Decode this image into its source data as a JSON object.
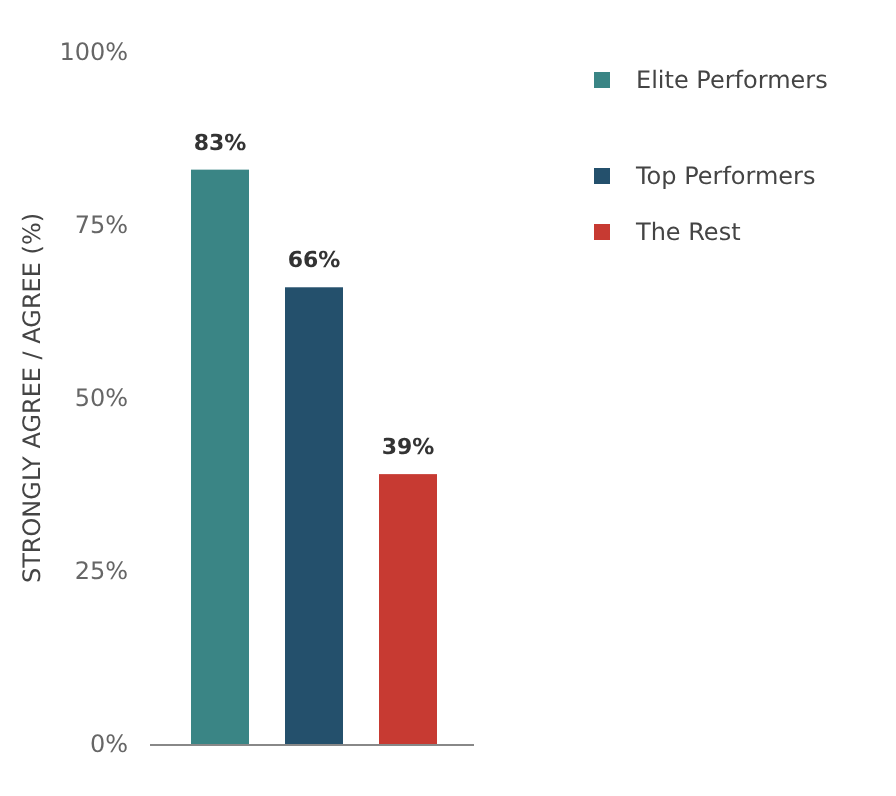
{
  "chart_data": {
    "type": "bar",
    "ylabel": "STRONGLY AGREE / AGREE (%)",
    "categories": [
      null,
      null,
      null
    ],
    "series": [
      {
        "name": "Elite Performers",
        "color": "#3a8585",
        "values": [
          83,
          null,
          null
        ],
        "value_labels": [
          "83%",
          null,
          null
        ]
      },
      {
        "name": "Top Performers",
        "color": "#24506c",
        "values": [
          null,
          66,
          null
        ],
        "value_labels": [
          null,
          "66%",
          null
        ]
      },
      {
        "name": "The Rest",
        "color": "#c73a32",
        "values": [
          null,
          null,
          39
        ],
        "value_labels": [
          null,
          null,
          "39%"
        ]
      }
    ],
    "ylim": [
      0,
      100
    ],
    "yticks": [
      {
        "value": 0,
        "label": "0%"
      },
      {
        "value": 25,
        "label": "25%"
      },
      {
        "value": 50,
        "label": "50%"
      },
      {
        "value": 75,
        "label": "75%"
      },
      {
        "value": 100,
        "label": "100%"
      }
    ],
    "grid": false,
    "legend": "top right"
  }
}
